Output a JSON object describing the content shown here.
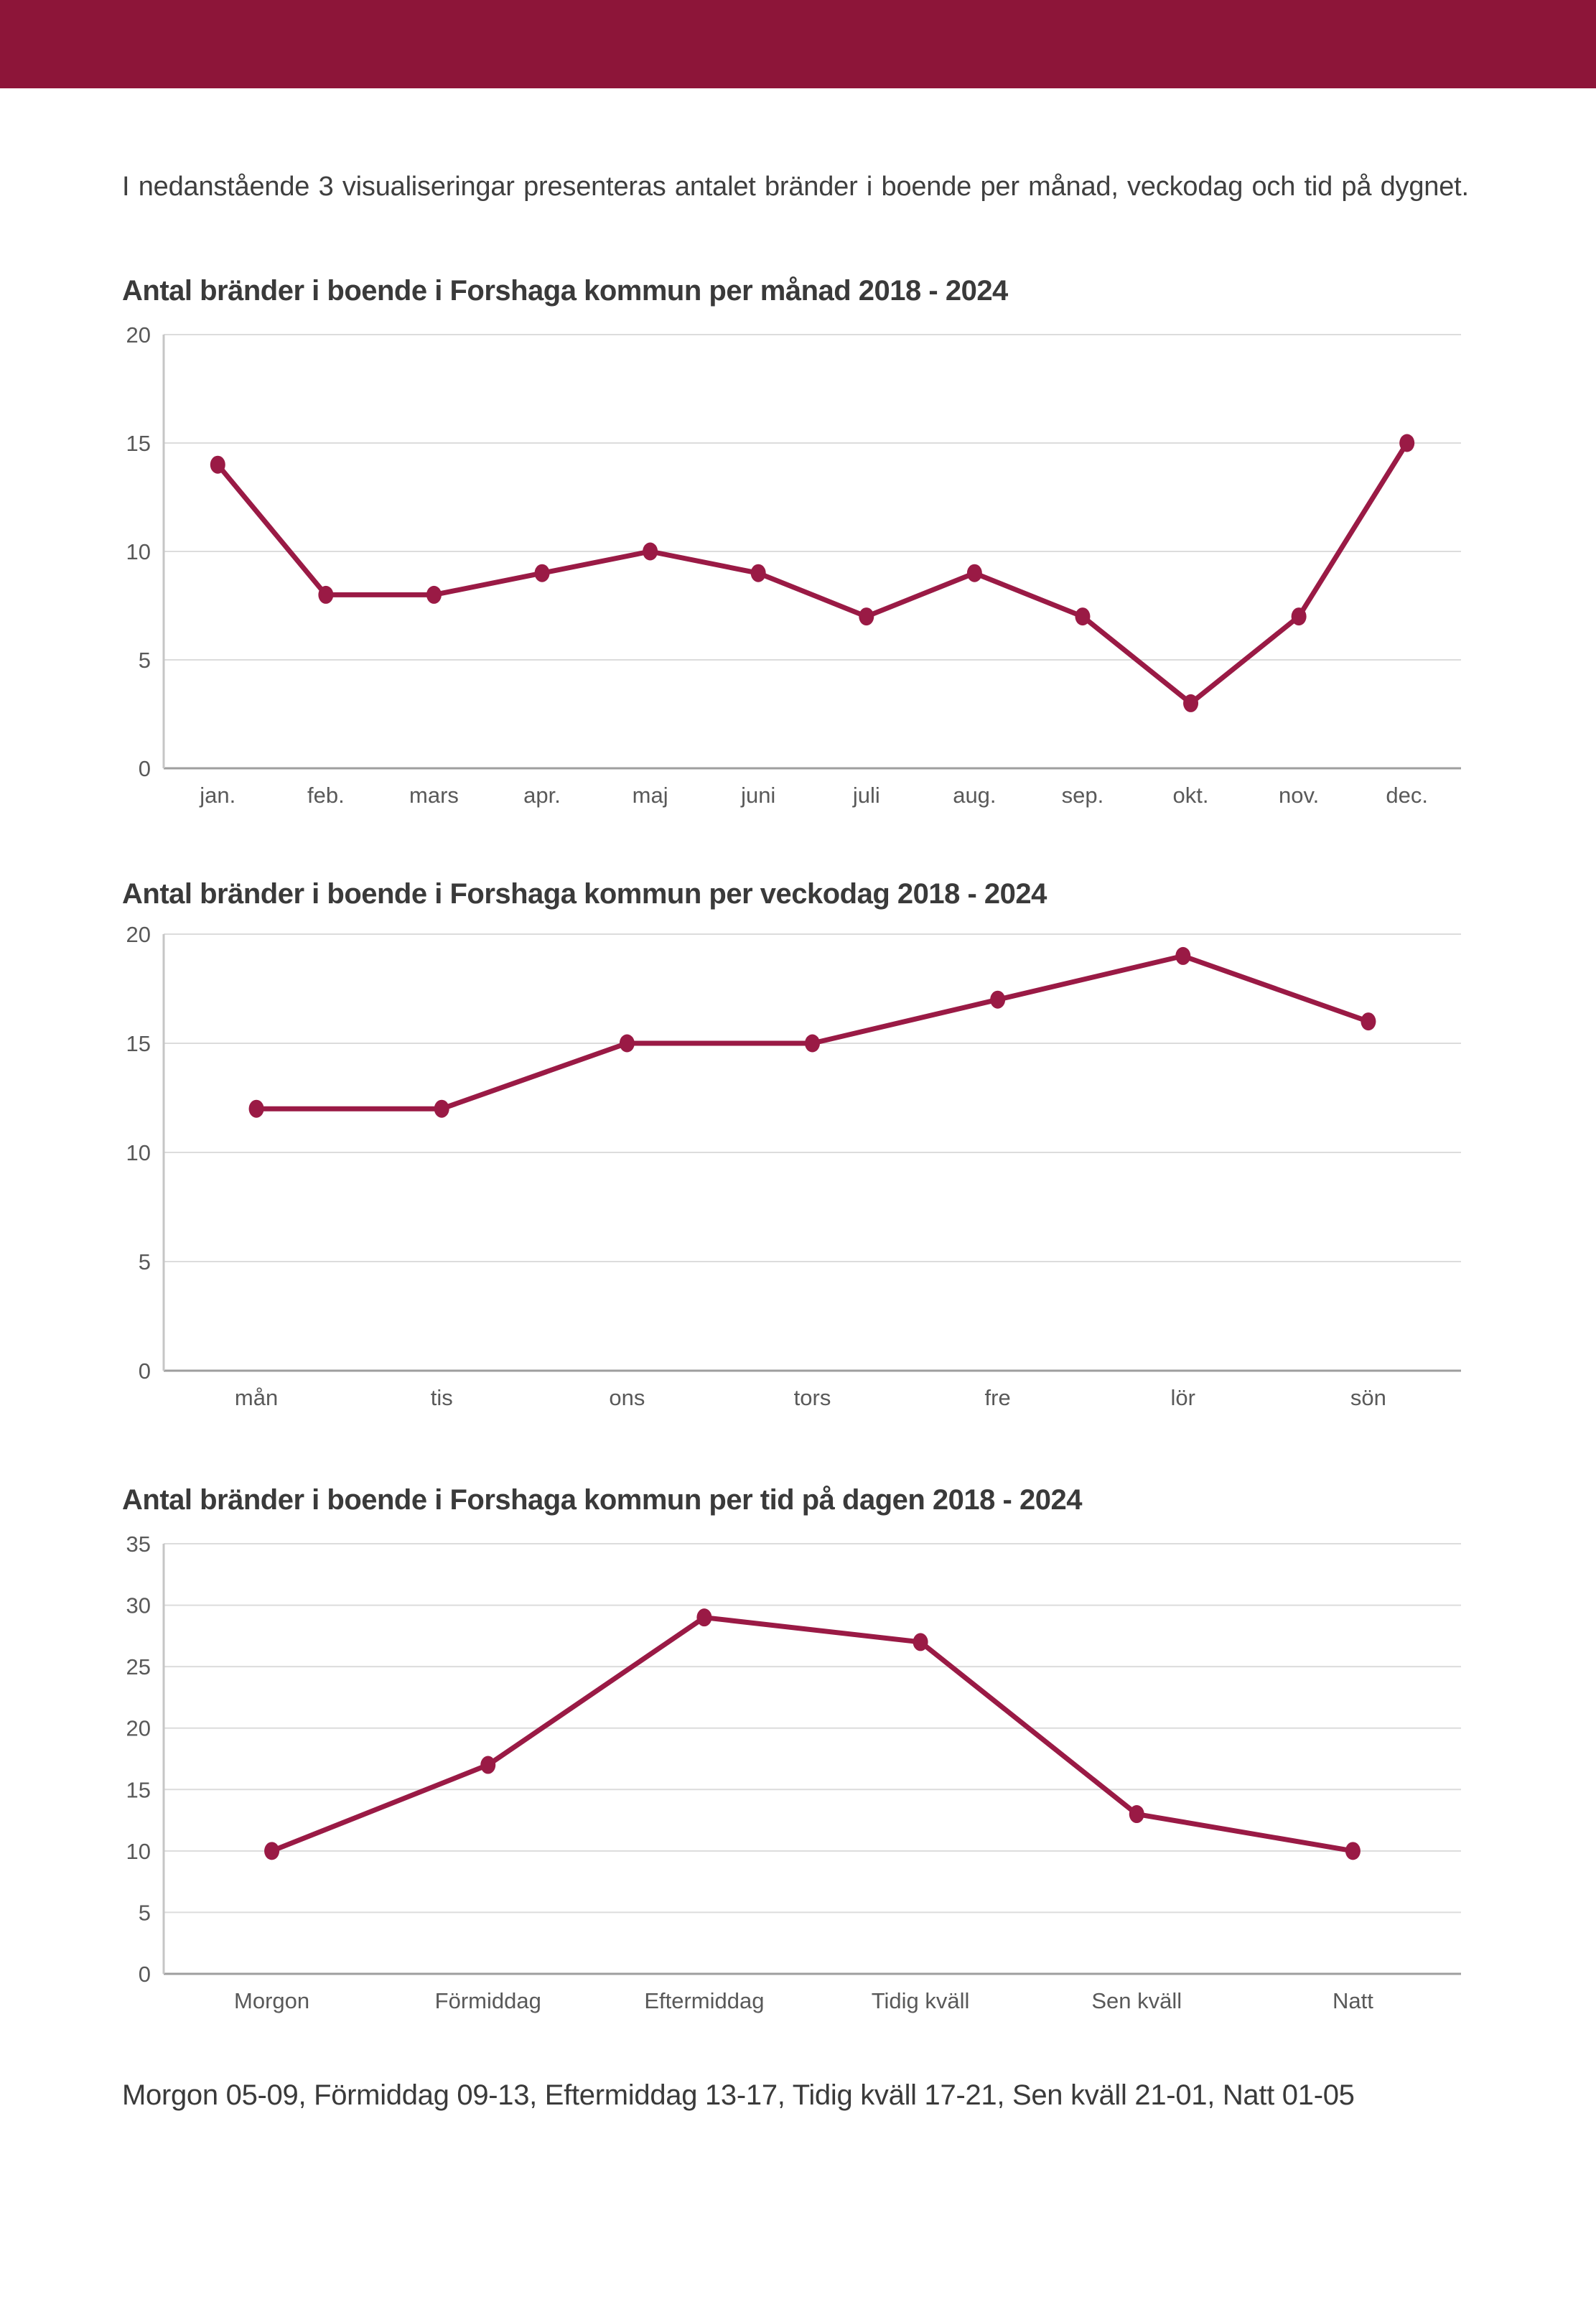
{
  "page": {
    "intro": "I nedanstående 3 visualiseringar presenteras antalet bränder i boende per månad, veckodag och tid på dygnet.",
    "footnote": "Morgon 05-09, Förmiddag 09-13, Eftermiddag 13-17, Tidig kväll 17-21, Sen kväll 21-01, Natt 01-05"
  },
  "colors": {
    "header_bar": "#8D1539",
    "line": "#9A1A45",
    "point": "#9A1A45",
    "gridline": "#DCDCDC",
    "y_axis_line": "#C6C6C6",
    "x_axis_line": "#9E9E9E",
    "tick_text": "#595959",
    "title_text": "#3A3A3A",
    "body_text": "#3F3F3F"
  },
  "chart_data": [
    {
      "type": "line",
      "title": "Antal bränder i boende i Forshaga kommun per månad 2018 - 2024",
      "categories": [
        "jan.",
        "feb.",
        "mars",
        "apr.",
        "maj",
        "juni",
        "juli",
        "aug.",
        "sep.",
        "okt.",
        "nov.",
        "dec."
      ],
      "values": [
        14,
        8,
        8,
        9,
        10,
        9,
        7,
        9,
        7,
        3,
        7,
        15
      ],
      "xlabel": "",
      "ylabel": "",
      "ylim": [
        0,
        20
      ],
      "ytick_step": 5,
      "grid": true,
      "legend": null
    },
    {
      "type": "line",
      "title": "Antal bränder i boende i Forshaga kommun per veckodag 2018 - 2024",
      "categories": [
        "mån",
        "tis",
        "ons",
        "tors",
        "fre",
        "lör",
        "sön"
      ],
      "values": [
        12,
        12,
        15,
        15,
        17,
        19,
        16
      ],
      "xlabel": "",
      "ylabel": "",
      "ylim": [
        0,
        20
      ],
      "ytick_step": 5,
      "grid": true,
      "legend": null
    },
    {
      "type": "line",
      "title": "Antal bränder i boende i Forshaga kommun per tid på dagen 2018 - 2024",
      "categories": [
        "Morgon",
        "Förmiddag",
        "Eftermiddag",
        "Tidig kväll",
        "Sen kväll",
        "Natt"
      ],
      "values": [
        10,
        17,
        29,
        27,
        13,
        10
      ],
      "xlabel": "",
      "ylabel": "",
      "ylim": [
        0,
        35
      ],
      "ytick_step": 5,
      "grid": true,
      "legend": null
    }
  ]
}
